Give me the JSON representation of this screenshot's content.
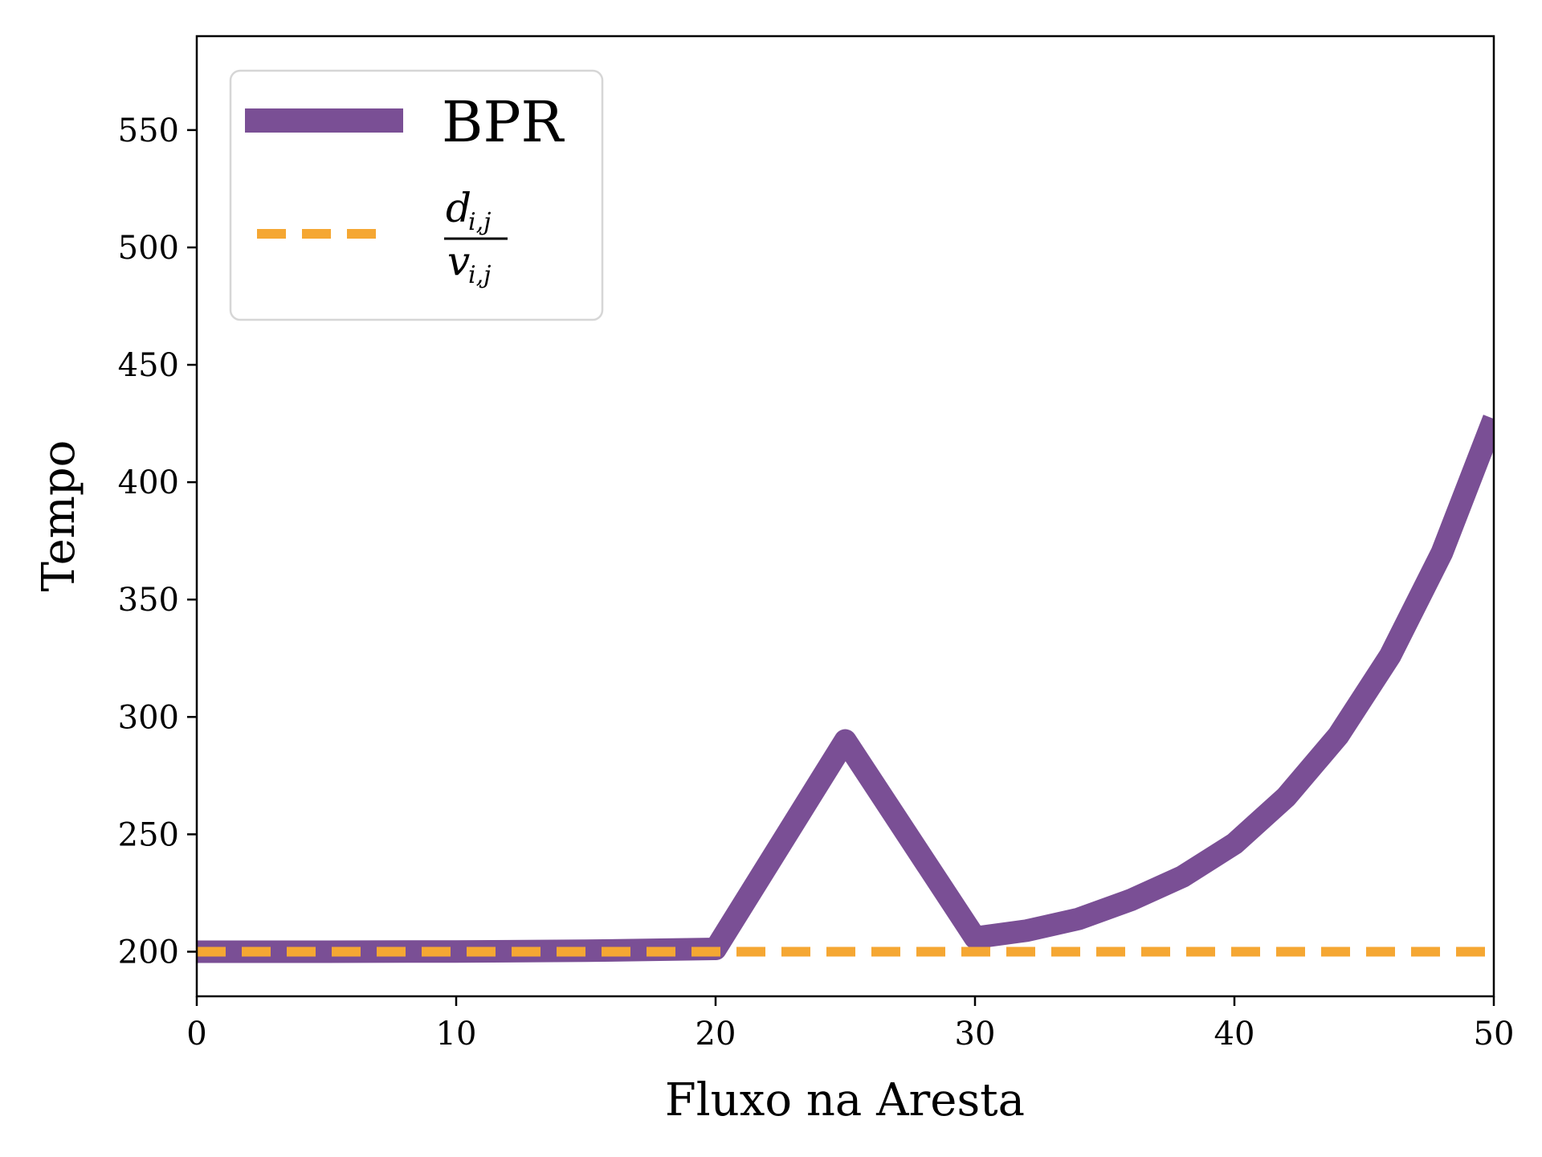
{
  "chart_data": {
    "type": "line",
    "xlabel": "Fluxo na Aresta",
    "ylabel": "Tempo",
    "xlim": [
      0,
      50
    ],
    "ylim": [
      181,
      590
    ],
    "xticks": [
      0,
      10,
      20,
      30,
      40,
      50
    ],
    "yticks": [
      200,
      250,
      300,
      350,
      400,
      450,
      500,
      550
    ],
    "grid": false,
    "legend_position": "top-left",
    "series": [
      {
        "name": "BPR",
        "style": "solid",
        "color": "#7a4f95",
        "x": [
          0,
          5,
          10,
          15,
          20,
          25,
          30,
          32,
          34,
          36,
          38,
          40,
          42,
          44,
          46,
          48,
          50
        ],
        "y": [
          200,
          200,
          200.1,
          200.4,
          201.2,
          290.0,
          206.0,
          209.0,
          214.0,
          222.0,
          232.0,
          246.0,
          266.0,
          292.0,
          326.0,
          370.0,
          427.0
        ]
      },
      {
        "name": "d_i,j / v_i,j",
        "style": "dashed",
        "color": "#f5a733",
        "x": [
          0,
          50
        ],
        "y": [
          200,
          200
        ]
      }
    ],
    "legend": {
      "bpr_label": "BPR",
      "ratio_numerator": "d",
      "ratio_denominator": "v",
      "ratio_subscript": "i,j"
    }
  }
}
